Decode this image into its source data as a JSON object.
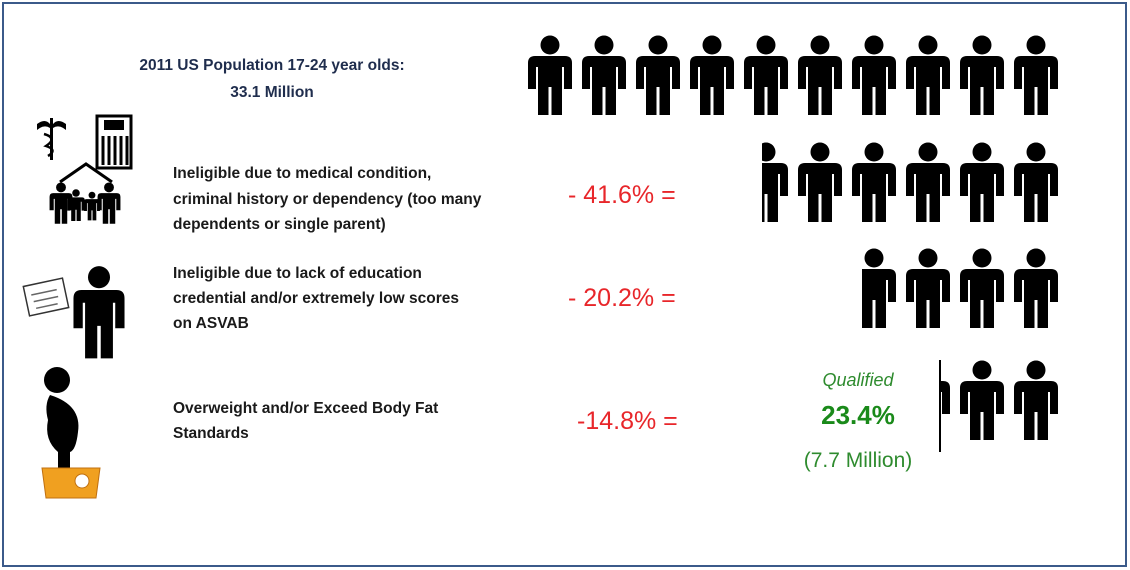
{
  "header": {
    "lines": [
      "2011 US Population 17-24 year olds:",
      "33.1 Million"
    ]
  },
  "rows": [
    {
      "lines": [
        "Ineligible due to medical condition,",
        "criminal history or dependency (too many",
        "dependents or single parent)"
      ],
      "percent": "- 41.6% ="
    },
    {
      "lines": [
        "Ineligible due to lack of education",
        "credential and/or extremely low scores",
        "on ASVAB"
      ],
      "percent": "- 20.2% ="
    },
    {
      "lines": [
        "Overweight and/or Exceed Body Fat",
        "Standards"
      ],
      "percent": "-14.8% ="
    }
  ],
  "qualified": {
    "label": "Qualified",
    "percent": "23.4%",
    "count": "(7.7 Million)"
  }
}
